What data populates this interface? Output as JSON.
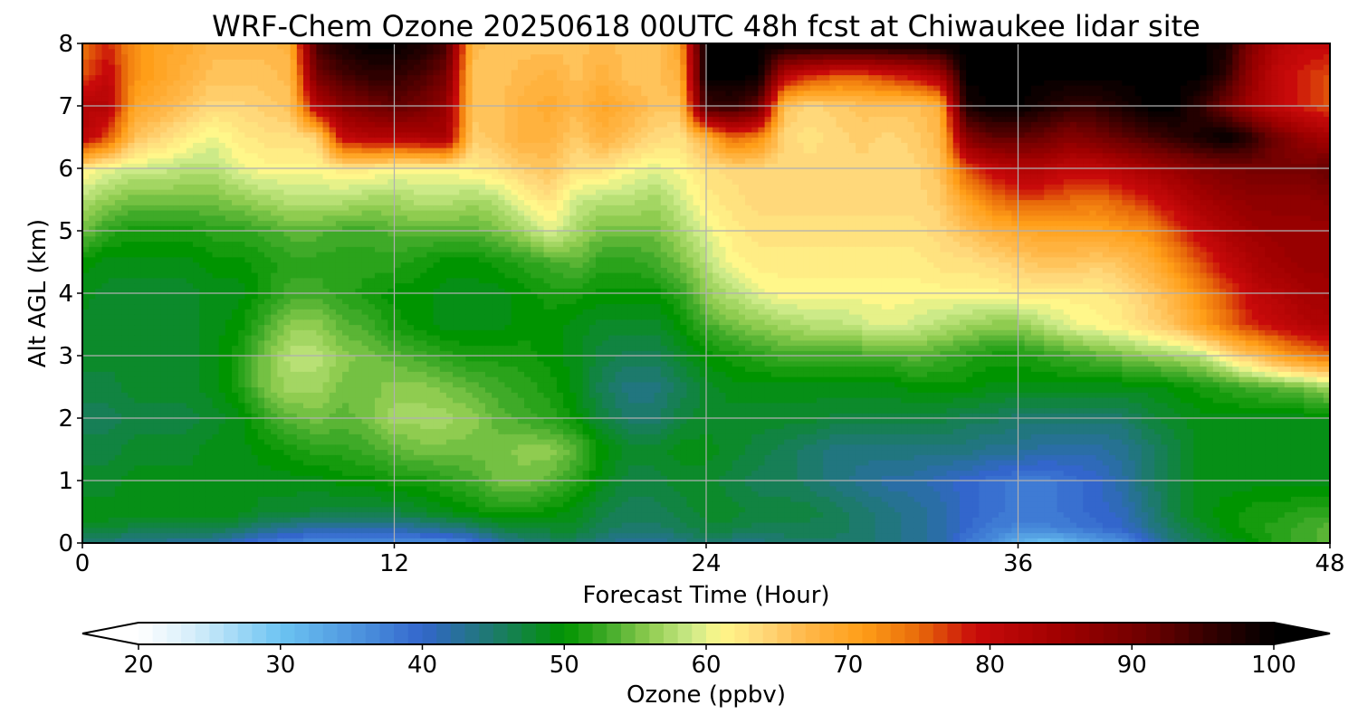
{
  "chart_data": {
    "type": "heatmap",
    "title": "WRF-Chem Ozone  20250618 00UTC 48h fcst at Chiwaukee lidar site",
    "xlabel": "Forecast Time (Hour)",
    "ylabel": "Alt AGL (km)",
    "xlim": [
      0,
      48
    ],
    "ylim": [
      0,
      8
    ],
    "x_ticks": [
      0,
      12,
      24,
      36,
      48
    ],
    "y_ticks": [
      0,
      1,
      2,
      3,
      4,
      5,
      6,
      7,
      8
    ],
    "grid": true,
    "x": [
      0,
      1,
      2,
      3,
      4,
      5,
      6,
      7,
      8,
      9,
      10,
      11,
      12,
      13,
      14,
      15,
      16,
      17,
      18,
      19,
      20,
      21,
      22,
      23,
      24,
      25,
      26,
      27,
      28,
      29,
      30,
      31,
      32,
      33,
      34,
      35,
      36,
      37,
      38,
      39,
      40,
      41,
      42,
      43,
      44,
      45,
      46,
      47,
      48
    ],
    "y": [
      0,
      0.25,
      0.5,
      1,
      1.5,
      2,
      2.5,
      3,
      3.5,
      4,
      4.5,
      5,
      5.5,
      6,
      6.5,
      7,
      7.5,
      8
    ],
    "z_units": "ppbv",
    "z": [
      [
        45,
        44,
        43,
        43,
        42,
        42,
        40,
        38,
        37,
        36,
        36,
        36,
        36,
        36,
        36,
        38,
        42,
        44,
        45,
        45,
        44,
        42,
        42,
        44,
        45,
        44,
        44,
        45,
        45,
        45,
        45,
        44,
        43,
        42,
        38,
        36,
        32,
        30,
        32,
        34,
        36,
        40,
        44,
        46,
        48,
        50,
        52,
        53,
        54
      ],
      [
        48,
        48,
        47,
        47,
        47,
        47,
        46,
        44,
        43,
        42,
        42,
        42,
        42,
        43,
        44,
        45,
        47,
        48,
        48,
        48,
        46,
        45,
        45,
        46,
        47,
        47,
        46,
        46,
        46,
        46,
        45,
        44,
        43,
        42,
        40,
        38,
        37,
        37,
        38,
        39,
        40,
        43,
        46,
        48,
        50,
        51,
        52,
        53,
        54
      ],
      [
        49,
        49,
        49,
        49,
        49,
        49,
        49,
        48,
        48,
        47,
        47,
        47,
        47,
        48,
        49,
        50,
        51,
        51,
        50,
        49,
        47,
        46,
        46,
        47,
        48,
        48,
        47,
        47,
        47,
        46,
        45,
        44,
        43,
        42,
        40,
        39,
        38,
        38,
        39,
        40,
        41,
        44,
        47,
        49,
        50,
        51,
        51,
        52,
        52
      ],
      [
        48,
        48,
        49,
        49,
        49,
        49,
        49,
        49,
        49,
        49,
        50,
        50,
        51,
        51,
        52,
        53,
        55,
        55,
        54,
        52,
        49,
        47,
        47,
        48,
        48,
        47,
        46,
        46,
        45,
        44,
        43,
        42,
        42,
        41,
        40,
        39,
        38,
        38,
        39,
        40,
        42,
        45,
        47,
        49,
        49,
        49,
        49,
        49,
        49
      ],
      [
        47,
        47,
        48,
        48,
        48,
        49,
        49,
        50,
        51,
        52,
        52,
        53,
        54,
        55,
        55,
        55,
        55,
        56,
        56,
        54,
        50,
        48,
        48,
        49,
        49,
        48,
        47,
        46,
        45,
        44,
        44,
        44,
        44,
        44,
        44,
        43,
        43,
        42,
        42,
        42,
        43,
        45,
        47,
        49,
        49,
        49,
        49,
        49,
        49
      ],
      [
        46,
        46,
        47,
        47,
        47,
        48,
        49,
        52,
        54,
        55,
        54,
        55,
        57,
        57,
        57,
        56,
        54,
        53,
        52,
        50,
        47,
        45,
        45,
        47,
        48,
        48,
        48,
        48,
        48,
        47,
        47,
        47,
        47,
        47,
        46,
        46,
        45,
        45,
        45,
        45,
        45,
        47,
        48,
        49,
        49,
        49,
        49,
        49,
        49
      ],
      [
        47,
        47,
        48,
        48,
        48,
        49,
        51,
        55,
        57,
        57,
        55,
        55,
        56,
        56,
        55,
        54,
        53,
        52,
        51,
        49,
        46,
        44,
        44,
        46,
        48,
        49,
        49,
        49,
        49,
        49,
        49,
        49,
        50,
        50,
        50,
        49,
        49,
        49,
        49,
        49,
        49,
        49,
        50,
        51,
        52,
        53,
        54,
        55,
        57
      ],
      [
        48,
        48,
        48,
        48,
        48,
        49,
        51,
        55,
        58,
        58,
        56,
        55,
        54,
        53,
        52,
        51,
        51,
        51,
        50,
        49,
        47,
        46,
        46,
        48,
        50,
        51,
        52,
        53,
        53,
        53,
        53,
        53,
        54,
        53,
        52,
        51,
        51,
        52,
        53,
        54,
        55,
        56,
        57,
        58,
        62,
        66,
        70,
        73,
        75
      ],
      [
        48,
        48,
        48,
        48,
        48,
        49,
        50,
        53,
        56,
        56,
        54,
        53,
        51,
        50,
        49,
        49,
        49,
        50,
        50,
        49,
        48,
        48,
        48,
        50,
        53,
        55,
        56,
        57,
        58,
        58,
        59,
        60,
        59,
        58,
        57,
        56,
        56,
        58,
        60,
        61,
        62,
        64,
        66,
        70,
        74,
        78,
        80,
        82,
        83
      ],
      [
        49,
        48,
        48,
        48,
        48,
        49,
        49,
        51,
        53,
        53,
        52,
        51,
        50,
        50,
        49,
        49,
        49,
        50,
        51,
        51,
        50,
        50,
        50,
        52,
        56,
        58,
        60,
        61,
        61,
        61,
        61,
        61,
        61,
        61,
        61,
        61,
        62,
        62,
        62,
        62,
        63,
        65,
        68,
        72,
        76,
        80,
        82,
        84,
        85
      ],
      [
        50,
        49,
        49,
        49,
        49,
        50,
        50,
        51,
        52,
        52,
        52,
        52,
        52,
        51,
        50,
        50,
        51,
        52,
        53,
        54,
        52,
        52,
        53,
        55,
        58,
        61,
        62,
        62,
        62,
        62,
        62,
        62,
        62,
        63,
        63,
        64,
        65,
        66,
        66,
        65,
        66,
        68,
        72,
        76,
        80,
        83,
        85,
        86,
        86
      ],
      [
        55,
        52,
        51,
        51,
        51,
        52,
        52,
        53,
        54,
        54,
        53,
        53,
        54,
        54,
        54,
        54,
        55,
        57,
        60,
        57,
        55,
        55,
        55,
        57,
        60,
        62,
        63,
        63,
        63,
        63,
        63,
        63,
        63,
        64,
        66,
        68,
        69,
        70,
        70,
        70,
        71,
        72,
        76,
        80,
        83,
        85,
        86,
        86,
        86
      ],
      [
        58,
        56,
        55,
        55,
        55,
        55,
        56,
        57,
        58,
        58,
        58,
        57,
        57,
        58,
        58,
        57,
        58,
        61,
        63,
        59,
        58,
        58,
        57,
        59,
        62,
        63,
        64,
        64,
        64,
        64,
        64,
        64,
        64,
        65,
        70,
        74,
        76,
        76,
        75,
        74,
        76,
        78,
        81,
        84,
        86,
        87,
        87,
        87,
        88
      ],
      [
        62,
        60,
        59,
        59,
        58,
        58,
        60,
        61,
        61,
        61,
        62,
        62,
        61,
        61,
        61,
        62,
        63,
        65,
        66,
        63,
        63,
        61,
        60,
        61,
        63,
        64,
        64,
        64,
        64,
        64,
        64,
        64,
        64,
        66,
        76,
        80,
        82,
        82,
        80,
        80,
        82,
        84,
        86,
        88,
        89,
        90,
        90,
        90,
        92
      ],
      [
        82,
        76,
        66,
        64,
        62,
        60,
        62,
        63,
        63,
        64,
        80,
        82,
        82,
        83,
        84,
        65,
        66,
        68,
        68,
        65,
        68,
        66,
        64,
        63,
        68,
        75,
        73,
        64,
        63,
        64,
        65,
        64,
        65,
        67,
        88,
        92,
        92,
        91,
        88,
        90,
        92,
        94,
        96,
        98,
        100,
        96,
        90,
        86,
        84
      ],
      [
        82,
        82,
        70,
        68,
        66,
        64,
        64,
        65,
        66,
        82,
        88,
        90,
        92,
        90,
        86,
        66,
        66,
        68,
        69,
        67,
        70,
        68,
        66,
        66,
        95,
        96,
        92,
        66,
        64,
        65,
        66,
        66,
        66,
        68,
        98,
        100,
        100,
        98,
        96,
        96,
        98,
        100,
        100,
        96,
        90,
        84,
        80,
        78,
        76
      ],
      [
        76,
        80,
        72,
        70,
        68,
        66,
        66,
        66,
        67,
        90,
        94,
        96,
        96,
        94,
        90,
        66,
        66,
        67,
        68,
        66,
        68,
        66,
        66,
        68,
        100,
        100,
        100,
        82,
        78,
        76,
        76,
        78,
        80,
        84,
        100,
        100,
        100,
        100,
        100,
        100,
        100,
        100,
        100,
        100,
        96,
        86,
        80,
        78,
        76
      ],
      [
        74,
        78,
        72,
        70,
        69,
        67,
        67,
        67,
        68,
        94,
        98,
        100,
        100,
        98,
        94,
        67,
        66,
        66,
        66,
        66,
        67,
        66,
        66,
        70,
        100,
        100,
        100,
        100,
        100,
        100,
        100,
        100,
        100,
        100,
        100,
        100,
        100,
        100,
        100,
        100,
        100,
        100,
        100,
        100,
        98,
        88,
        82,
        80,
        80
      ]
    ]
  },
  "colorbar": {
    "label": "Ozone  (ppbv)",
    "min": 20,
    "max": 100,
    "ticks": [
      20,
      30,
      40,
      50,
      60,
      70,
      80,
      90,
      100
    ],
    "extend": "both",
    "stops": [
      {
        "v": 20,
        "c": "#ffffff"
      },
      {
        "v": 24,
        "c": "#d4edfa"
      },
      {
        "v": 30,
        "c": "#6cc4f2"
      },
      {
        "v": 36,
        "c": "#4a8fdc"
      },
      {
        "v": 40,
        "c": "#3366cc"
      },
      {
        "v": 45,
        "c": "#1d7a6c"
      },
      {
        "v": 50,
        "c": "#009400"
      },
      {
        "v": 53,
        "c": "#3faa28"
      },
      {
        "v": 56,
        "c": "#8fcc50"
      },
      {
        "v": 59,
        "c": "#ccea88"
      },
      {
        "v": 61,
        "c": "#fff78a"
      },
      {
        "v": 64,
        "c": "#ffd87a"
      },
      {
        "v": 67,
        "c": "#ffb84a"
      },
      {
        "v": 71,
        "c": "#ff9e18"
      },
      {
        "v": 75,
        "c": "#e86a0a"
      },
      {
        "v": 79,
        "c": "#c80a0a"
      },
      {
        "v": 85,
        "c": "#a00000"
      },
      {
        "v": 91,
        "c": "#6e0000"
      },
      {
        "v": 96,
        "c": "#2e0000"
      },
      {
        "v": 100,
        "c": "#000000"
      }
    ]
  }
}
